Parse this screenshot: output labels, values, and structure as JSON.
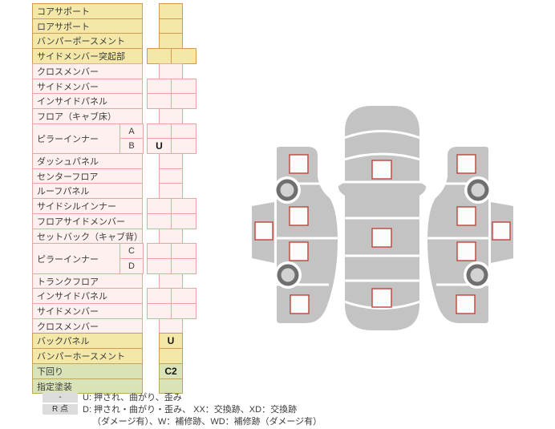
{
  "table": {
    "rows": [
      {
        "label": "コアサポート",
        "sub": null,
        "span": 1,
        "color": "yellow",
        "cells": "single",
        "values": [
          ""
        ]
      },
      {
        "label": "ロアサポート",
        "sub": null,
        "span": 1,
        "color": "yellow",
        "cells": "single",
        "values": [
          ""
        ]
      },
      {
        "label": "バンパーポースメント",
        "sub": null,
        "span": 1,
        "color": "yellow",
        "cells": "single",
        "values": [
          ""
        ]
      },
      {
        "label": "サイドメンバー突起部",
        "sub": null,
        "span": 1,
        "color": "yellow",
        "cells": "double",
        "values": [
          "",
          ""
        ]
      },
      {
        "label": "クロスメンバー",
        "sub": null,
        "span": 1,
        "color": "pink",
        "cells": "single",
        "values": [
          ""
        ]
      },
      {
        "label": "サイドメンバー",
        "sub": null,
        "span": 1,
        "color": "pink",
        "cells": "double",
        "values": [
          "",
          ""
        ]
      },
      {
        "label": "インサイドパネル",
        "sub": null,
        "span": 1,
        "color": "pink",
        "cells": "double",
        "values": [
          "",
          ""
        ]
      },
      {
        "label": "フロア（キャブ床）",
        "sub": null,
        "span": 1,
        "color": "pink",
        "cells": "single",
        "values": [
          ""
        ]
      },
      {
        "label": "ピラーインナー",
        "sub": "A",
        "span": 2,
        "color": "pink",
        "cells": "double",
        "values": [
          "",
          ""
        ]
      },
      {
        "label": null,
        "sub": "B",
        "span": 0,
        "color": "pink",
        "cells": "double",
        "values": [
          "U",
          ""
        ]
      },
      {
        "label": "ダッシュパネル",
        "sub": null,
        "span": 1,
        "color": "pink",
        "cells": "single",
        "values": [
          ""
        ]
      },
      {
        "label": "センターフロア",
        "sub": null,
        "span": 1,
        "color": "pink",
        "cells": "single",
        "values": [
          ""
        ]
      },
      {
        "label": "ルーフパネル",
        "sub": null,
        "span": 1,
        "color": "pink",
        "cells": "single",
        "values": [
          ""
        ]
      },
      {
        "label": "サイドシルインナー",
        "sub": null,
        "span": 1,
        "color": "pink",
        "cells": "double",
        "values": [
          "",
          ""
        ]
      },
      {
        "label": "フロアサイドメンバー",
        "sub": null,
        "span": 1,
        "color": "pink",
        "cells": "double",
        "values": [
          "",
          ""
        ]
      },
      {
        "label": "セットバック（キャブ背）",
        "sub": null,
        "span": 1,
        "color": "pink",
        "cells": "single",
        "values": [
          ""
        ]
      },
      {
        "label": "ピラーインナー",
        "sub": "C",
        "span": 2,
        "color": "pink",
        "cells": "double",
        "values": [
          "",
          ""
        ]
      },
      {
        "label": null,
        "sub": "D",
        "span": 0,
        "color": "pink",
        "cells": "double",
        "values": [
          "",
          ""
        ]
      },
      {
        "label": "トランクフロア",
        "sub": null,
        "span": 1,
        "color": "pink",
        "cells": "single",
        "values": [
          ""
        ]
      },
      {
        "label": "インサイドパネル",
        "sub": null,
        "span": 1,
        "color": "pink",
        "cells": "double",
        "values": [
          "",
          ""
        ]
      },
      {
        "label": "サイドメンバー",
        "sub": null,
        "span": 1,
        "color": "pink",
        "cells": "double",
        "values": [
          "",
          ""
        ]
      },
      {
        "label": "クロスメンバー",
        "sub": null,
        "span": 1,
        "color": "pink",
        "cells": "single",
        "values": [
          ""
        ]
      },
      {
        "label": "バックパネル",
        "sub": null,
        "span": 1,
        "color": "yellow",
        "cells": "single",
        "values": [
          "U"
        ]
      },
      {
        "label": "バンパーホースメント",
        "sub": null,
        "span": 1,
        "color": "yellow",
        "cells": "single",
        "values": [
          ""
        ]
      },
      {
        "label": "下回り",
        "sub": null,
        "span": 1,
        "color": "green",
        "cells": "single",
        "values": [
          "C2"
        ]
      },
      {
        "label": "指定塗装",
        "sub": null,
        "span": 1,
        "color": "green",
        "cells": "single",
        "values": [
          ""
        ]
      }
    ]
  },
  "legend": {
    "key1": "-",
    "key2": "R 点",
    "line1": "U: 押され、曲がり、歪み",
    "line2": "D: 押され・曲がり・歪み、 XX：交換跡、XD：交換跡",
    "line3": "（ダメージ有）、W：補修跡、WD：補修跡（ダメージ有）"
  },
  "diagram": {
    "views": [
      "car-left-side-view",
      "car-top-view",
      "car-right-side-view"
    ],
    "marker_count": 13,
    "wheel_count": 4
  },
  "colors": {
    "yellow_fill": "#f4e8a9",
    "yellow_border": "#cf9b51",
    "pink_fill": "#fdf0ee",
    "pink_border": "#e8a69e",
    "green_fill": "#d8e4b7",
    "green_border": "#bfa75e",
    "marker_border": "#c0443c",
    "car_body": "#c3c3c3",
    "wheel_ring": "#6f6f6f",
    "wheel_hub": "#d2d2d2",
    "legend_box_bg": "#dcdcdc",
    "text": "#3c3c3c"
  }
}
